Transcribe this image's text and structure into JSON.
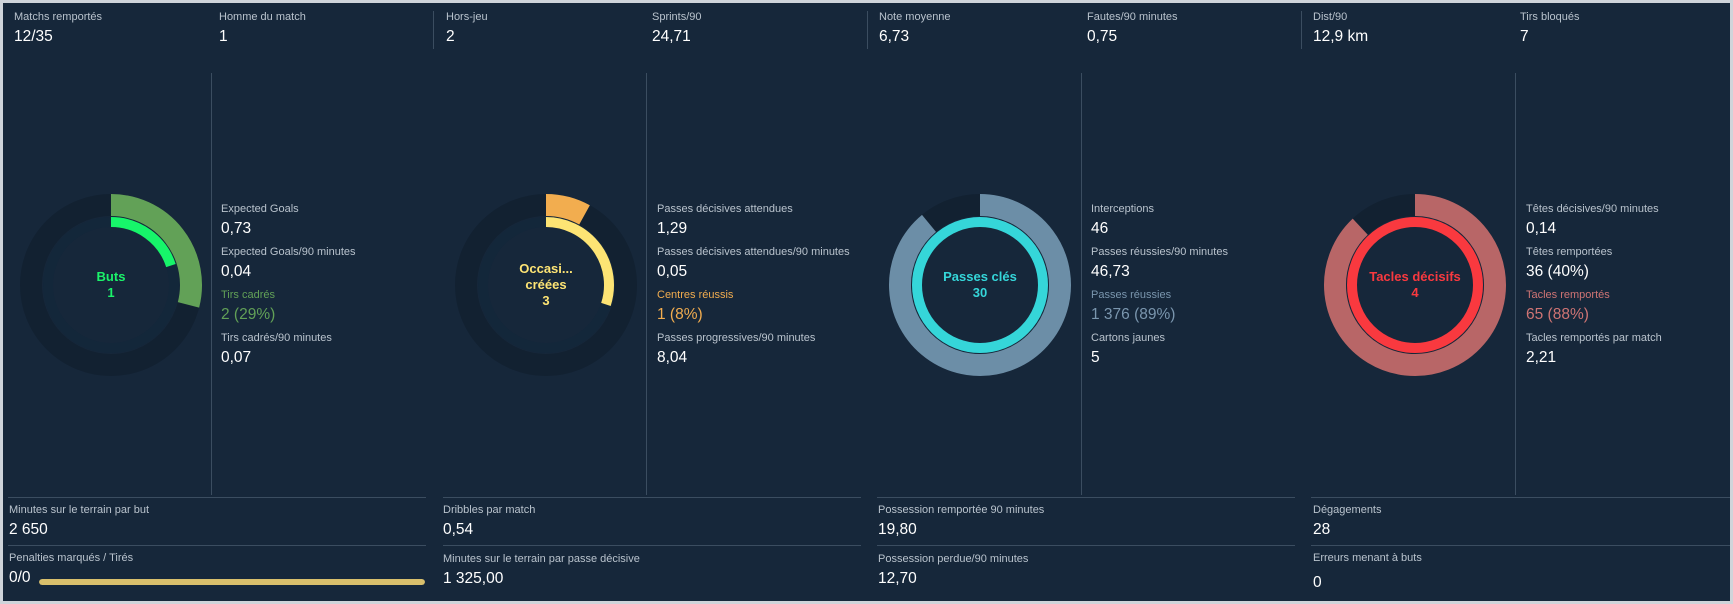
{
  "top_stats": [
    {
      "label": "Matchs remportés",
      "value": "12/35"
    },
    {
      "label": "Homme du match",
      "value": "1"
    },
    {
      "label": "Hors-jeu",
      "value": "2"
    },
    {
      "label": "Sprints/90",
      "value": "24,71"
    },
    {
      "label": "Note moyenne",
      "value": "6,73"
    },
    {
      "label": "Fautes/90 minutes",
      "value": "0,75"
    },
    {
      "label": "Dist/90",
      "value": "12,9 km"
    },
    {
      "label": "Tirs bloqués",
      "value": "7"
    }
  ],
  "sections": [
    {
      "donut_label_lines": [
        "Buts"
      ],
      "donut_value": "1",
      "inner_fraction": 0.2,
      "outer_fraction": 0.29,
      "colors": {
        "inner": "#17f56a",
        "outer": "#62a157",
        "label": "#1bf36a"
      },
      "stats": [
        {
          "label": "Expected Goals",
          "value": "0,73"
        },
        {
          "label": "Expected Goals/90 minutes",
          "value": "0,04"
        },
        {
          "label": "Tirs cadrés",
          "value": "2 (29%)"
        },
        {
          "label": "Tirs cadrés/90 minutes",
          "value": "0,07"
        }
      ],
      "accent_stat_color": "#62a157"
    },
    {
      "donut_label_lines": [
        "Occasi...",
        "créées"
      ],
      "donut_value": "3",
      "inner_fraction": 0.3,
      "outer_fraction": 0.08,
      "colors": {
        "inner": "#fde474",
        "outer": "#f2ad4f",
        "label": "#fde474"
      },
      "stats": [
        {
          "label": "Passes décisives attendues",
          "value": "1,29"
        },
        {
          "label": "Passes décisives attendues/90 minutes",
          "value": "0,05"
        },
        {
          "label": "Centres réussis",
          "value": "1 (8%)"
        },
        {
          "label": "Passes progressives/90 minutes",
          "value": "8,04"
        }
      ],
      "accent_stat_color": "#f2ad4f"
    },
    {
      "donut_label_lines": [
        "Passes clés"
      ],
      "donut_value": "30",
      "inner_fraction": 1.0,
      "outer_fraction": 0.89,
      "colors": {
        "inner": "#35d6d9",
        "outer": "#6c8ea7",
        "label": "#35d6d9"
      },
      "stats": [
        {
          "label": "Interceptions",
          "value": "46"
        },
        {
          "label": "Passes réussies/90 minutes",
          "value": "46,73"
        },
        {
          "label": "Passes réussies",
          "value": "1 376 (89%)"
        },
        {
          "label": "Cartons jaunes",
          "value": "5"
        }
      ],
      "accent_stat_color": "#7a96ae"
    },
    {
      "donut_label_lines": [
        "Tacles décisifs"
      ],
      "donut_value": "4",
      "inner_fraction": 1.0,
      "outer_fraction": 0.88,
      "colors": {
        "inner": "#f9393f",
        "outer": "#b86667",
        "label": "#f9393f"
      },
      "stats": [
        {
          "label": "Têtes décisives/90 minutes",
          "value": "0,14"
        },
        {
          "label": "Têtes remportées",
          "value": "36 (40%)"
        },
        {
          "label": "Tacles remportés",
          "value": "65 (88%)"
        },
        {
          "label": "Tacles remportés par match",
          "value": "2,21"
        }
      ],
      "accent_stat_color": "#cf7474"
    }
  ],
  "bottom": [
    {
      "top": {
        "label": "Minutes sur le terrain par but",
        "value": "2 650"
      },
      "bottom": {
        "label": "Penalties marqués / Tirés",
        "value": "0/0",
        "bar_fraction": 1.0,
        "bar_color": "#d8bf6c"
      }
    },
    {
      "top": {
        "label": "Dribbles par match",
        "value": "0,54"
      },
      "bottom": {
        "label": "Minutes sur le terrain par passe décisive",
        "value": "1 325,00"
      }
    },
    {
      "top": {
        "label": "Possession remportée 90 minutes",
        "value": "19,80"
      },
      "bottom": {
        "label": "Possession perdue/90 minutes",
        "value": "12,70"
      }
    },
    {
      "top": {
        "label": "Dégagements",
        "value": "28"
      },
      "bottom": {
        "label": "Erreurs menant à buts",
        "value": "0"
      }
    }
  ]
}
